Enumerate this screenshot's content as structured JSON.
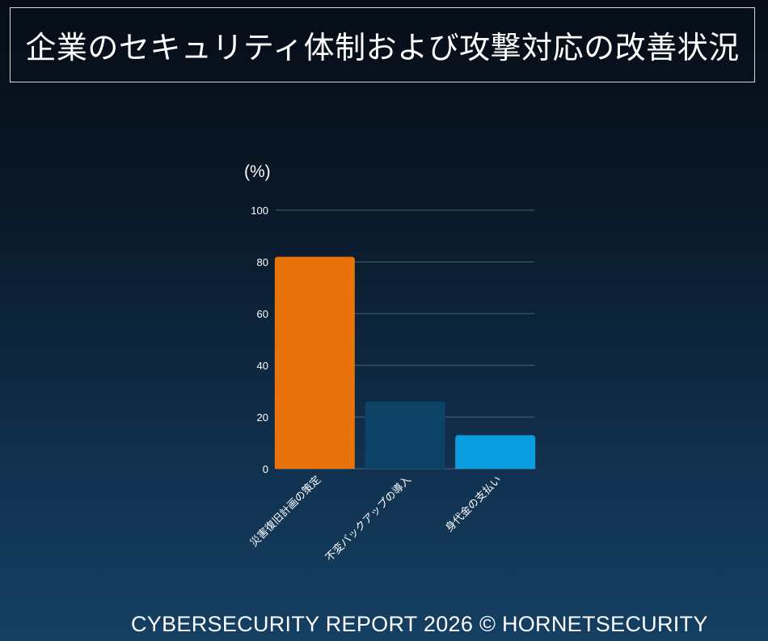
{
  "title": "企業のセキュリティ体制および攻撃対応の改善状況",
  "footer": "CYBERSECURITY REPORT 2026 © HORNETSECURITY",
  "chart_data": {
    "type": "bar",
    "unit_label": "(%)",
    "categories": [
      "災害復旧計画の策定",
      "不変バックアップの導入",
      "身代金の支払い"
    ],
    "values": [
      82,
      26,
      13
    ],
    "colors": [
      "#e8730a",
      "#0c4266",
      "#0a9ee0"
    ],
    "ylim": [
      0,
      100
    ],
    "yticks": [
      0,
      20,
      40,
      60,
      80,
      100
    ],
    "grid": true
  }
}
